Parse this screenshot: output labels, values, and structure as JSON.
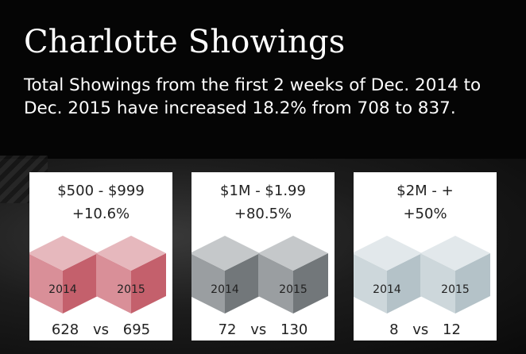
{
  "title": "Charlotte Showings",
  "subtitle": "Total Showings from the first 2 weeks of Dec. 2014 to Dec. 2015 have increased 18.2% from 708 to 837.",
  "chart_data": [
    {
      "type": "bar",
      "title": "$500 - $999",
      "change": "+10.6%",
      "categories": [
        "2014",
        "2015"
      ],
      "values": [
        628,
        695
      ],
      "separator": "vs",
      "colors": {
        "top": "#e6b8bd",
        "left": "#d98f98",
        "right": "#c4606c"
      }
    },
    {
      "type": "bar",
      "title": "$1M -   $1.99",
      "change": "+80.5%",
      "categories": [
        "2014",
        "2015"
      ],
      "values": [
        72,
        130
      ],
      "separator": "vs",
      "colors": {
        "top": "#c5c8ca",
        "left": "#9a9ea1",
        "right": "#72777a"
      }
    },
    {
      "type": "bar",
      "title": "$2M  -  +",
      "change": "+50%",
      "categories": [
        "2014",
        "2015"
      ],
      "values": [
        8,
        12
      ],
      "separator": "vs",
      "colors": {
        "top": "#e2e8eb",
        "left": "#cdd7db",
        "right": "#b4c2c8"
      }
    }
  ]
}
